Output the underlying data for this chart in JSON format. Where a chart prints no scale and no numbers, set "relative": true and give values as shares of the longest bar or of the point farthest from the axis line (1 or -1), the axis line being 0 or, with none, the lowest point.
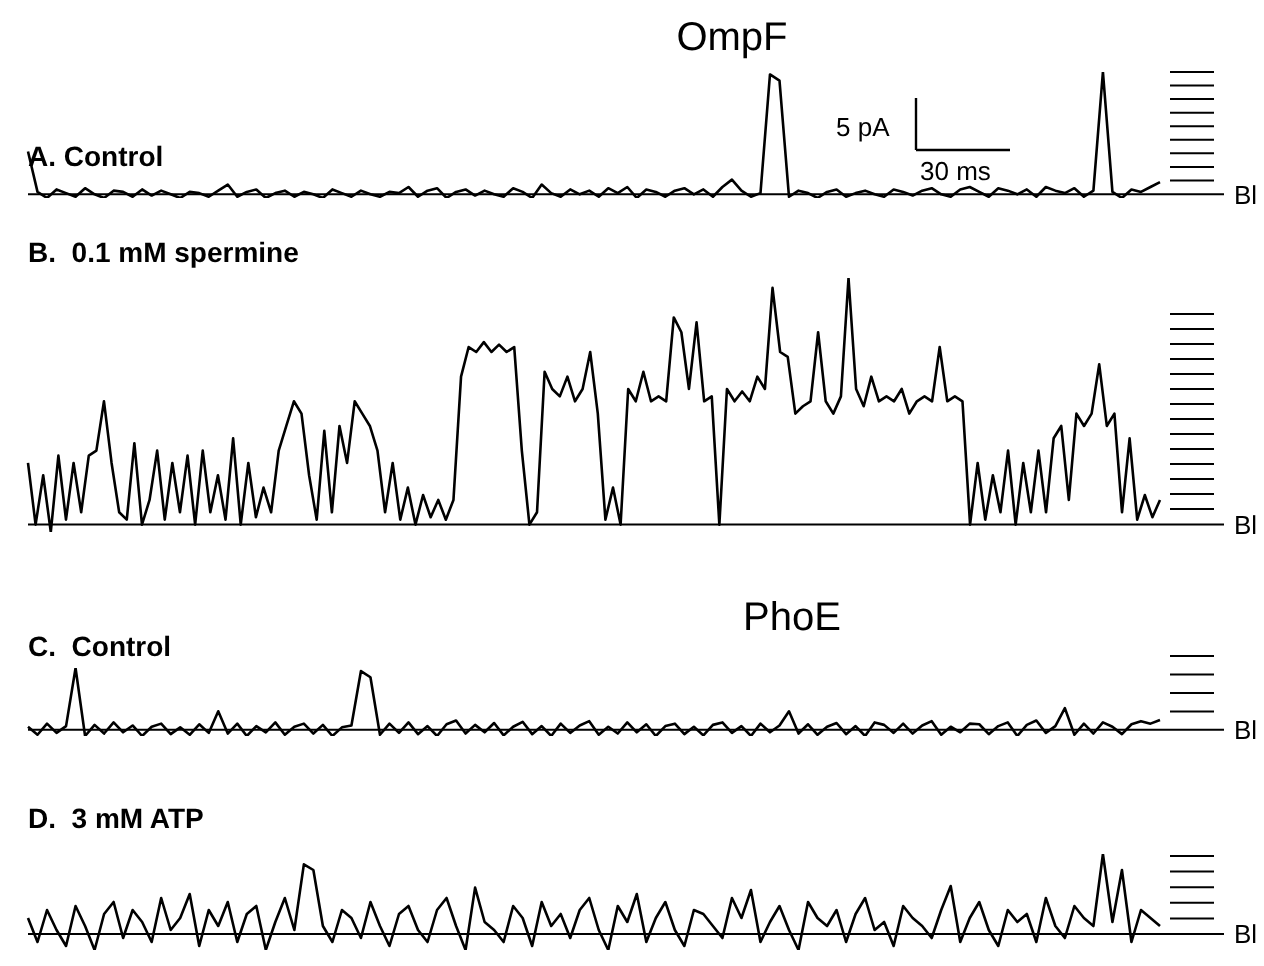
{
  "chart_data": [
    {
      "type": "line",
      "title": "OmpF",
      "subtitle": "A. Control",
      "relative": true,
      "color": "#000000",
      "annotations": [
        "5 pA",
        "30 ms"
      ],
      "ref_lines": [
        {
          "axis": "y",
          "value": 0,
          "label": "Bl"
        }
      ],
      "categories": [
        null,
        null,
        null,
        null,
        null,
        null,
        null,
        null,
        null,
        null,
        null,
        null,
        null,
        null,
        null,
        null,
        null,
        null,
        null,
        null,
        null,
        null,
        null,
        null,
        null,
        null,
        null,
        null,
        null,
        null,
        null,
        null,
        null,
        null,
        null,
        null,
        null,
        null,
        null,
        null,
        null,
        null,
        null,
        null,
        null,
        null,
        null,
        null,
        null,
        null,
        null,
        null,
        null,
        null,
        null,
        null,
        null,
        null,
        null,
        null,
        null,
        null,
        null,
        null,
        null,
        null,
        null,
        null,
        null,
        null,
        null,
        null,
        null,
        null,
        null,
        null,
        null,
        null,
        null,
        null,
        null,
        null,
        null,
        null,
        null,
        null,
        null,
        null,
        null,
        null,
        null,
        null,
        null,
        null,
        null,
        null,
        null,
        null,
        null,
        null,
        null,
        null,
        null,
        null,
        null,
        null,
        null,
        null,
        null,
        null,
        null,
        null,
        null,
        null,
        null,
        null,
        null,
        null,
        null,
        null
      ],
      "values": [
        0.35,
        0.02,
        -0.03,
        0.04,
        0.01,
        -0.02,
        0.05,
        0.0,
        -0.03,
        0.03,
        0.02,
        -0.02,
        0.04,
        -0.01,
        0.03,
        0.0,
        -0.03,
        0.02,
        0.01,
        -0.02,
        0.03,
        0.08,
        -0.02,
        0.02,
        0.04,
        -0.03,
        0.01,
        0.03,
        -0.02,
        0.02,
        0.0,
        -0.03,
        0.04,
        0.01,
        -0.02,
        0.03,
        0.0,
        -0.02,
        0.02,
        0.01,
        0.06,
        -0.02,
        0.03,
        0.05,
        -0.03,
        0.02,
        0.04,
        -0.01,
        0.03,
        0.0,
        -0.02,
        0.05,
        0.02,
        -0.03,
        0.08,
        0.01,
        -0.02,
        0.04,
        0.0,
        0.03,
        -0.02,
        0.05,
        0.01,
        0.06,
        -0.03,
        0.04,
        0.02,
        -0.02,
        0.03,
        0.05,
        0.0,
        0.04,
        -0.02,
        0.06,
        0.12,
        0.03,
        -0.02,
        0.01,
        0.98,
        0.93,
        -0.02,
        0.03,
        0.01,
        -0.03,
        0.02,
        0.04,
        -0.02,
        0.01,
        0.03,
        0.0,
        -0.02,
        0.04,
        0.02,
        -0.01,
        0.03,
        0.05,
        0.0,
        -0.02,
        0.04,
        0.06,
        0.02,
        -0.02,
        0.05,
        0.03,
        0.0,
        0.04,
        -0.02,
        0.06,
        0.03,
        0.01,
        0.05,
        -0.02,
        0.03,
        1.0,
        0.02,
        -0.03,
        0.04,
        0.02,
        0.06,
        0.1
      ]
    },
    {
      "type": "line",
      "subtitle": "B.  0.1 mM spermine",
      "relative": true,
      "color": "#000000",
      "ref_lines": [
        {
          "axis": "y",
          "value": 0,
          "label": "Bl"
        }
      ],
      "categories": [
        null,
        null,
        null,
        null,
        null,
        null,
        null,
        null,
        null,
        null,
        null,
        null,
        null,
        null,
        null,
        null,
        null,
        null,
        null,
        null,
        null,
        null,
        null,
        null,
        null,
        null,
        null,
        null,
        null,
        null,
        null,
        null,
        null,
        null,
        null,
        null,
        null,
        null,
        null,
        null,
        null,
        null,
        null,
        null,
        null,
        null,
        null,
        null,
        null,
        null,
        null,
        null,
        null,
        null,
        null,
        null,
        null,
        null,
        null,
        null,
        null,
        null,
        null,
        null,
        null,
        null,
        null,
        null,
        null,
        null,
        null,
        null,
        null,
        null,
        null,
        null,
        null,
        null,
        null,
        null,
        null,
        null,
        null,
        null,
        null,
        null,
        null,
        null,
        null,
        null,
        null,
        null,
        null,
        null,
        null,
        null,
        null,
        null,
        null,
        null,
        null,
        null,
        null,
        null,
        null,
        null,
        null,
        null,
        null,
        null,
        null,
        null,
        null,
        null,
        null,
        null,
        null,
        null,
        null,
        null,
        null,
        null,
        null,
        null,
        null,
        null,
        null,
        null,
        null,
        null,
        null,
        null,
        null,
        null,
        null,
        null,
        null,
        null,
        null,
        null,
        null,
        null,
        null,
        null,
        null,
        null,
        null,
        null,
        null,
        null
      ],
      "values": [
        0.25,
        0.0,
        0.2,
        -0.03,
        0.28,
        0.02,
        0.25,
        0.05,
        0.28,
        0.3,
        0.5,
        0.25,
        0.05,
        0.02,
        0.33,
        0.0,
        0.1,
        0.3,
        0.02,
        0.25,
        0.05,
        0.28,
        0.0,
        0.3,
        0.05,
        0.2,
        0.02,
        0.35,
        0.0,
        0.25,
        0.03,
        0.15,
        0.05,
        0.3,
        0.4,
        0.5,
        0.45,
        0.2,
        0.02,
        0.38,
        0.05,
        0.4,
        0.25,
        0.5,
        0.45,
        0.4,
        0.3,
        0.05,
        0.25,
        0.02,
        0.15,
        0.0,
        0.12,
        0.03,
        0.1,
        0.02,
        0.1,
        0.6,
        0.72,
        0.7,
        0.74,
        0.7,
        0.73,
        0.7,
        0.72,
        0.3,
        0.0,
        0.05,
        0.62,
        0.55,
        0.52,
        0.6,
        0.5,
        0.55,
        0.7,
        0.45,
        0.02,
        0.15,
        0.0,
        0.55,
        0.5,
        0.62,
        0.5,
        0.52,
        0.5,
        0.84,
        0.78,
        0.55,
        0.82,
        0.5,
        0.52,
        0.0,
        0.55,
        0.5,
        0.54,
        0.5,
        0.6,
        0.55,
        0.96,
        0.7,
        0.68,
        0.45,
        0.48,
        0.5,
        0.78,
        0.5,
        0.45,
        0.52,
        1.0,
        0.55,
        0.48,
        0.6,
        0.5,
        0.52,
        0.5,
        0.55,
        0.45,
        0.5,
        0.52,
        0.5,
        0.72,
        0.5,
        0.52,
        0.5,
        0.0,
        0.25,
        0.02,
        0.2,
        0.05,
        0.3,
        0.0,
        0.25,
        0.05,
        0.3,
        0.05,
        0.35,
        0.4,
        0.1,
        0.45,
        0.4,
        0.45,
        0.65,
        0.4,
        0.45,
        0.05,
        0.35,
        0.02,
        0.12,
        0.03,
        0.1
      ]
    },
    {
      "type": "line",
      "title": "PhoE",
      "subtitle": "C.  Control",
      "relative": true,
      "color": "#000000",
      "ref_lines": [
        {
          "axis": "y",
          "value": 0,
          "label": "Bl"
        }
      ],
      "categories": [
        null,
        null,
        null,
        null,
        null,
        null,
        null,
        null,
        null,
        null,
        null,
        null,
        null,
        null,
        null,
        null,
        null,
        null,
        null,
        null,
        null,
        null,
        null,
        null,
        null,
        null,
        null,
        null,
        null,
        null,
        null,
        null,
        null,
        null,
        null,
        null,
        null,
        null,
        null,
        null,
        null,
        null,
        null,
        null,
        null,
        null,
        null,
        null,
        null,
        null,
        null,
        null,
        null,
        null,
        null,
        null,
        null,
        null,
        null,
        null,
        null,
        null,
        null,
        null,
        null,
        null,
        null,
        null,
        null,
        null,
        null,
        null,
        null,
        null,
        null,
        null,
        null,
        null,
        null,
        null,
        null,
        null,
        null,
        null,
        null,
        null,
        null,
        null,
        null,
        null,
        null,
        null,
        null,
        null,
        null,
        null,
        null,
        null,
        null,
        null,
        null,
        null,
        null,
        null,
        null,
        null,
        null,
        null,
        null,
        null,
        null,
        null,
        null,
        null,
        null,
        null,
        null,
        null,
        null,
        null
      ],
      "values": [
        0.05,
        -0.08,
        0.1,
        -0.05,
        0.06,
        1.0,
        -0.1,
        0.08,
        -0.06,
        0.12,
        -0.04,
        0.07,
        -0.1,
        0.05,
        0.1,
        -0.07,
        0.04,
        -0.08,
        0.09,
        -0.05,
        0.3,
        -0.06,
        0.1,
        -0.1,
        0.06,
        -0.04,
        0.12,
        -0.08,
        0.05,
        0.1,
        -0.06,
        0.08,
        -0.1,
        0.04,
        0.07,
        0.95,
        0.85,
        -0.08,
        0.1,
        -0.05,
        0.12,
        -0.07,
        0.06,
        -0.1,
        0.09,
        0.15,
        -0.06,
        0.08,
        -0.04,
        0.11,
        -0.09,
        0.05,
        0.13,
        -0.07,
        0.06,
        -0.1,
        0.1,
        -0.05,
        0.07,
        0.14,
        -0.08,
        0.05,
        -0.06,
        0.12,
        -0.04,
        0.09,
        -0.1,
        0.06,
        0.1,
        -0.07,
        0.05,
        -0.09,
        0.08,
        0.12,
        -0.05,
        0.06,
        -0.1,
        0.1,
        -0.04,
        0.07,
        0.3,
        -0.06,
        0.09,
        -0.08,
        0.05,
        0.11,
        -0.07,
        0.06,
        -0.1,
        0.12,
        0.08,
        -0.05,
        0.1,
        -0.06,
        0.07,
        0.14,
        -0.08,
        0.05,
        -0.04,
        0.1,
        0.09,
        -0.07,
        0.06,
        0.12,
        -0.1,
        0.08,
        0.15,
        -0.05,
        0.06,
        0.35,
        -0.08,
        0.1,
        -0.06,
        0.12,
        0.05,
        -0.07,
        0.09,
        0.14,
        0.1,
        0.16
      ]
    },
    {
      "type": "line",
      "subtitle": "D.  3 mM ATP",
      "relative": true,
      "color": "#000000",
      "ref_lines": [
        {
          "axis": "y",
          "value": 0,
          "label": "Bl"
        }
      ],
      "categories": [
        null,
        null,
        null,
        null,
        null,
        null,
        null,
        null,
        null,
        null,
        null,
        null,
        null,
        null,
        null,
        null,
        null,
        null,
        null,
        null,
        null,
        null,
        null,
        null,
        null,
        null,
        null,
        null,
        null,
        null,
        null,
        null,
        null,
        null,
        null,
        null,
        null,
        null,
        null,
        null,
        null,
        null,
        null,
        null,
        null,
        null,
        null,
        null,
        null,
        null,
        null,
        null,
        null,
        null,
        null,
        null,
        null,
        null,
        null,
        null,
        null,
        null,
        null,
        null,
        null,
        null,
        null,
        null,
        null,
        null,
        null,
        null,
        null,
        null,
        null,
        null,
        null,
        null,
        null,
        null,
        null,
        null,
        null,
        null,
        null,
        null,
        null,
        null,
        null,
        null,
        null,
        null,
        null,
        null,
        null,
        null,
        null,
        null,
        null,
        null,
        null,
        null,
        null,
        null,
        null,
        null,
        null,
        null,
        null,
        null,
        null,
        null,
        null,
        null,
        null,
        null,
        null,
        null,
        null,
        null
      ],
      "values": [
        0.2,
        -0.1,
        0.3,
        0.05,
        -0.15,
        0.35,
        0.1,
        -0.2,
        0.25,
        0.4,
        -0.05,
        0.3,
        0.15,
        -0.1,
        0.45,
        0.05,
        0.2,
        0.5,
        -0.15,
        0.3,
        0.1,
        0.4,
        -0.1,
        0.25,
        0.35,
        -0.2,
        0.15,
        0.45,
        0.05,
        0.87,
        0.8,
        0.1,
        -0.1,
        0.3,
        0.2,
        -0.05,
        0.4,
        0.1,
        -0.15,
        0.25,
        0.35,
        0.05,
        -0.1,
        0.3,
        0.45,
        0.1,
        -0.2,
        0.58,
        0.15,
        0.05,
        -0.1,
        0.35,
        0.2,
        -0.15,
        0.4,
        0.1,
        0.25,
        -0.05,
        0.3,
        0.45,
        0.05,
        -0.2,
        0.35,
        0.15,
        0.5,
        -0.1,
        0.2,
        0.4,
        0.05,
        -0.15,
        0.3,
        0.25,
        0.1,
        -0.05,
        0.45,
        0.2,
        0.55,
        -0.1,
        0.15,
        0.35,
        0.05,
        -0.2,
        0.4,
        0.2,
        0.1,
        0.3,
        -0.1,
        0.25,
        0.45,
        0.05,
        0.15,
        -0.15,
        0.35,
        0.2,
        0.1,
        -0.05,
        0.3,
        0.6,
        -0.1,
        0.2,
        0.4,
        0.05,
        -0.15,
        0.3,
        0.15,
        0.25,
        -0.1,
        0.45,
        0.1,
        -0.05,
        0.35,
        0.2,
        0.1,
        1.0,
        0.15,
        0.8,
        -0.1,
        0.3,
        0.2,
        0.1
      ]
    }
  ]
}
